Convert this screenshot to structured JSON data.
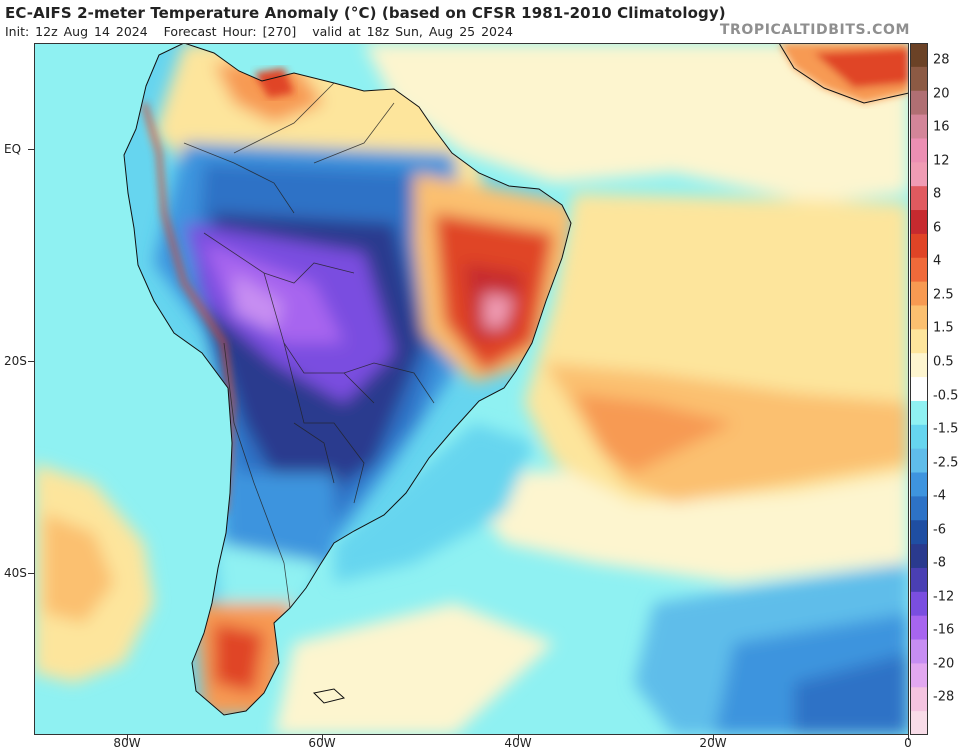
{
  "header": {
    "title": "EC-AIFS 2-meter Temperature Anomaly (°C) (based on CFSR 1981-2010 Climatology)",
    "init": "Init: 12z Aug 14 2024",
    "forecast_hour": "Forecast Hour: [270]",
    "valid": "valid at 18z Sun, Aug 25 2024",
    "watermark": "TROPICALTIDBITS.COM"
  },
  "axes": {
    "lat_labels": [
      "EQ",
      "20S",
      "40S"
    ],
    "lon_labels": [
      "80W",
      "60W",
      "40W",
      "20W",
      "0"
    ]
  },
  "legend": {
    "labels": [
      "28",
      "20",
      "16",
      "12",
      "8",
      "6",
      "4",
      "2.5",
      "1.5",
      "0.5",
      "-0.5",
      "-1.5",
      "-2.5",
      "-4",
      "-6",
      "-8",
      "-12",
      "-16",
      "-20",
      "-28"
    ],
    "colors": [
      "#6b4226",
      "#8c5a44",
      "#b06f73",
      "#d38599",
      "#ec8fb3",
      "#f09cb4",
      "#e05a5f",
      "#c62a2f",
      "#e04426",
      "#f06a3a",
      "#f79a52",
      "#fbc070",
      "#fde59c",
      "#fdf5cf",
      "#ffffff",
      "#8ff1f2",
      "#66d5ef",
      "#5fbdea",
      "#3e94de",
      "#2d72c6",
      "#1f4ea2",
      "#2a3a8e",
      "#4a3fb3",
      "#7a4ee0",
      "#a765ef",
      "#c78ef2",
      "#e2a8f0",
      "#f4c4e0",
      "#f8dce8"
    ]
  },
  "map": {
    "colors": {
      "ocean_warm": "#fde59c",
      "ocean_cool": "#8ff1f2",
      "deep_blue": "#2d72c6",
      "purple": "#7a4ee0",
      "violet": "#a765ef",
      "red": "#e04426",
      "orange": "#f79a52"
    }
  }
}
